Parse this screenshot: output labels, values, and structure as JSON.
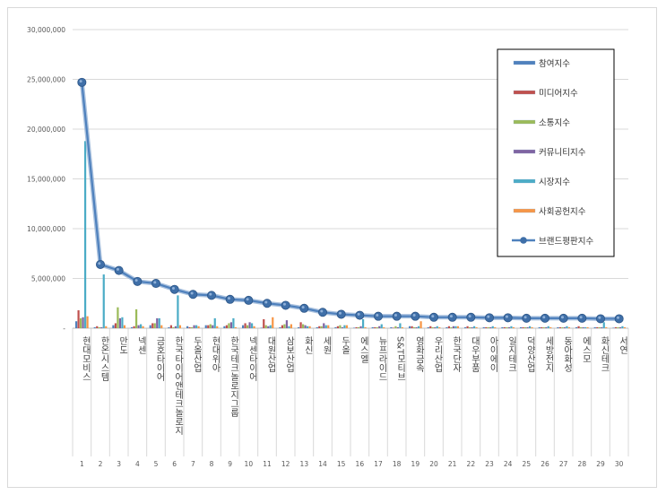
{
  "chart_data": {
    "type": "bar",
    "ylim": [
      0,
      30000000
    ],
    "y_ticks": [
      "-",
      "5,000,000",
      "10,000,000",
      "15,000,000",
      "20,000,000",
      "25,000,000",
      "30,000,000"
    ],
    "grid": "horizontal",
    "legend_placement": "top-right",
    "categories": [
      {
        "rank": "1",
        "name": "현대모비스"
      },
      {
        "rank": "2",
        "name": "한온시스템"
      },
      {
        "rank": "3",
        "name": "만도"
      },
      {
        "rank": "4",
        "name": "넥센"
      },
      {
        "rank": "5",
        "name": "금호타이어"
      },
      {
        "rank": "6",
        "name": "한국타이어앤테크놀로지"
      },
      {
        "rank": "7",
        "name": "두올산업"
      },
      {
        "rank": "8",
        "name": "현대위아"
      },
      {
        "rank": "9",
        "name": "한국테크놀로지그룹"
      },
      {
        "rank": "10",
        "name": "넥센타이어"
      },
      {
        "rank": "11",
        "name": "대원산업"
      },
      {
        "rank": "12",
        "name": "삼보산업"
      },
      {
        "rank": "13",
        "name": "화신"
      },
      {
        "rank": "14",
        "name": "세원"
      },
      {
        "rank": "15",
        "name": "두올"
      },
      {
        "rank": "16",
        "name": "에스엘"
      },
      {
        "rank": "17",
        "name": "뉴프라이드"
      },
      {
        "rank": "18",
        "name": "S&T모티브"
      },
      {
        "rank": "19",
        "name": "영화금속"
      },
      {
        "rank": "20",
        "name": "우리산업"
      },
      {
        "rank": "21",
        "name": "한국단자"
      },
      {
        "rank": "22",
        "name": "대우부품"
      },
      {
        "rank": "23",
        "name": "아이에이"
      },
      {
        "rank": "24",
        "name": "일지테크"
      },
      {
        "rank": "25",
        "name": "덕양산업"
      },
      {
        "rank": "26",
        "name": "세방전지"
      },
      {
        "rank": "27",
        "name": "동아화성"
      },
      {
        "rank": "28",
        "name": "에스모"
      },
      {
        "rank": "29",
        "name": "화신테크"
      },
      {
        "rank": "30",
        "name": "서연"
      }
    ],
    "series": [
      {
        "name": "참여지수",
        "type": "bar",
        "color": "#4f81bd",
        "values": [
          700000,
          100000,
          300000,
          100000,
          300000,
          100000,
          200000,
          300000,
          200000,
          300000,
          50000,
          100000,
          100000,
          100000,
          100000,
          50000,
          100000,
          100000,
          200000,
          100000,
          100000,
          100000,
          100000,
          100000,
          100000,
          100000,
          100000,
          100000,
          100000,
          50000
        ]
      },
      {
        "name": "미디어지수",
        "type": "bar",
        "color": "#c0504d",
        "values": [
          1800000,
          200000,
          500000,
          200000,
          500000,
          300000,
          100000,
          300000,
          300000,
          500000,
          900000,
          300000,
          600000,
          200000,
          200000,
          100000,
          100000,
          50000,
          200000,
          200000,
          200000,
          200000,
          100000,
          100000,
          100000,
          100000,
          100000,
          200000,
          100000,
          100000
        ]
      },
      {
        "name": "소통지수",
        "type": "bar",
        "color": "#9bbb59",
        "values": [
          1000000,
          100000,
          2100000,
          1900000,
          500000,
          100000,
          100000,
          400000,
          500000,
          300000,
          300000,
          400000,
          400000,
          200000,
          300000,
          100000,
          100000,
          200000,
          100000,
          100000,
          100000,
          100000,
          100000,
          100000,
          100000,
          100000,
          100000,
          100000,
          100000,
          100000
        ]
      },
      {
        "name": "커뮤니티지수",
        "type": "bar",
        "color": "#8064a2",
        "values": [
          1100000,
          100000,
          1000000,
          300000,
          1000000,
          200000,
          300000,
          300000,
          600000,
          600000,
          200000,
          800000,
          300000,
          500000,
          100000,
          200000,
          200000,
          100000,
          100000,
          100000,
          200000,
          100000,
          100000,
          100000,
          100000,
          100000,
          100000,
          100000,
          100000,
          100000
        ]
      },
      {
        "name": "시장지수",
        "type": "bar",
        "color": "#4bacc6",
        "values": [
          18800000,
          5400000,
          1100000,
          400000,
          1000000,
          3300000,
          300000,
          1000000,
          1000000,
          500000,
          300000,
          200000,
          200000,
          300000,
          300000,
          900000,
          400000,
          500000,
          200000,
          200000,
          200000,
          200000,
          200000,
          200000,
          200000,
          200000,
          200000,
          100000,
          600000,
          200000
        ]
      },
      {
        "name": "사회공헌지수",
        "type": "bar",
        "color": "#f79646",
        "values": [
          1200000,
          200000,
          300000,
          200000,
          300000,
          300000,
          200000,
          200000,
          100000,
          200000,
          1100000,
          400000,
          200000,
          300000,
          300000,
          100000,
          100000,
          100000,
          700000,
          100000,
          200000,
          100000,
          100000,
          100000,
          100000,
          100000,
          100000,
          100000,
          100000,
          100000
        ]
      },
      {
        "name": "브랜드평판지수",
        "type": "line",
        "color": "#4f81bd",
        "values": [
          24700000,
          6400000,
          5800000,
          4700000,
          4500000,
          3900000,
          3400000,
          3300000,
          2900000,
          2800000,
          2500000,
          2300000,
          2000000,
          1600000,
          1400000,
          1300000,
          1200000,
          1200000,
          1200000,
          1100000,
          1100000,
          1100000,
          1050000,
          1050000,
          1000000,
          1000000,
          1000000,
          1000000,
          950000,
          950000
        ]
      }
    ]
  }
}
